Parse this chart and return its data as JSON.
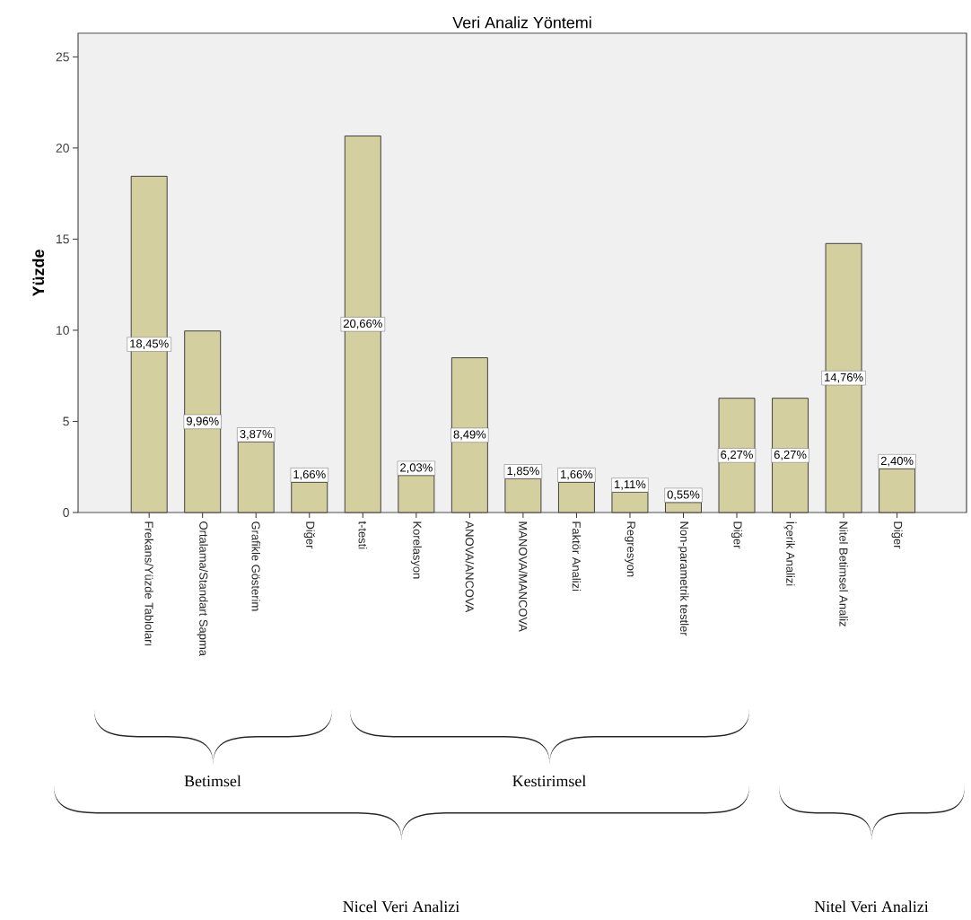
{
  "chart_data": {
    "type": "bar",
    "title": "Veri Analiz Yöntemi",
    "ylabel": "Yüzde",
    "categories": [
      "Frekans/Yüzde Tabloları",
      "Ortalama/Standart Sapma",
      "Grafikle Gösterim",
      "Diğer",
      "t-testi",
      "Korelasyon",
      "ANOVA/ANCOVA",
      "MANOVA/MANCOVA",
      "Faktör Analizi",
      "Regresyon",
      "Non-parametrik testler",
      "Diğer",
      "İçerik Analizi",
      "Nitel Betimsel Analiz",
      "Diğer"
    ],
    "values": [
      18.45,
      9.96,
      3.87,
      1.66,
      20.66,
      2.03,
      8.49,
      1.85,
      1.66,
      1.11,
      0.55,
      6.27,
      6.27,
      14.76,
      2.4
    ],
    "value_labels": [
      "18,45%",
      "9,96%",
      "3,87%",
      "1,66%",
      "20,66%",
      "2,03%",
      "8,49%",
      "1,85%",
      "1,66%",
      "1,11%",
      "0,55%",
      "6,27%",
      "6,27%",
      "14,76%",
      "2,40%"
    ],
    "color": "#d3cf9f",
    "ylim": [
      0,
      26.3
    ],
    "yticks": [
      0,
      5,
      10,
      15,
      20,
      25
    ],
    "annotations": [
      "Betimsel",
      "Kestirimsel",
      "Nicel Veri Analizi",
      "Nitel Veri Analizi"
    ]
  }
}
